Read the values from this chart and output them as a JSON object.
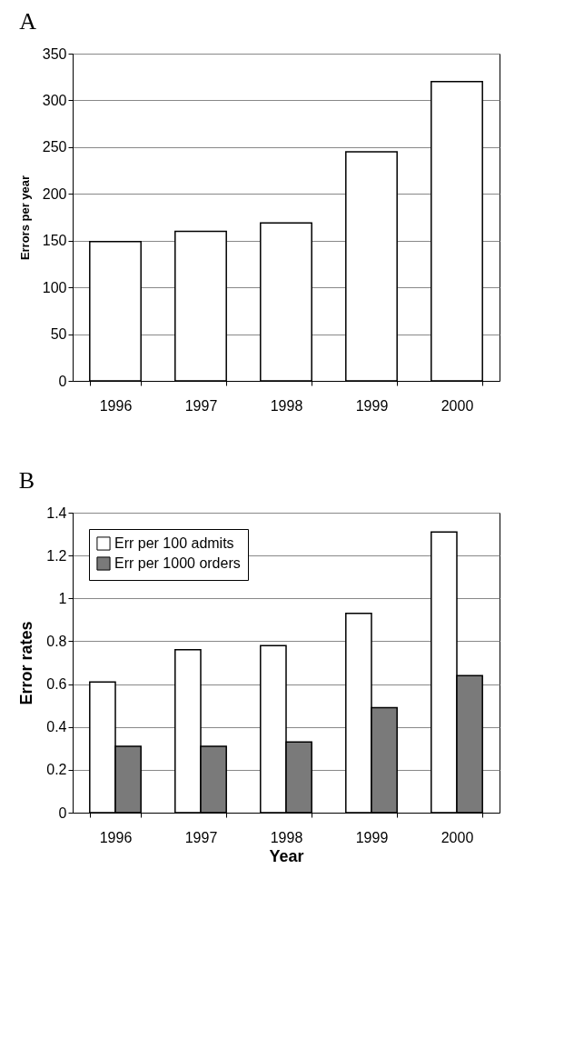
{
  "chart_data": [
    {
      "type": "bar",
      "title": "A",
      "ylabel": "Errors per year",
      "categories": [
        "1996",
        "1997",
        "1998",
        "1999",
        "2000"
      ],
      "values": [
        149,
        160,
        169,
        245,
        320
      ],
      "color": "#ffffff",
      "ylim": [
        0,
        350
      ],
      "yticks": [
        0,
        50,
        100,
        150,
        200,
        250,
        300,
        350
      ],
      "grid": "y"
    },
    {
      "type": "bar",
      "title": "B",
      "xlabel": "Year",
      "ylabel": "Error rates",
      "categories": [
        "1996",
        "1997",
        "1998",
        "1999",
        "2000"
      ],
      "series": [
        {
          "name": "Err per 100 admits",
          "color": "#ffffff",
          "values": [
            0.61,
            0.76,
            0.78,
            0.93,
            1.31
          ]
        },
        {
          "name": "Err per 1000 orders",
          "color": "#7a7a7a",
          "values": [
            0.31,
            0.31,
            0.33,
            0.49,
            0.64
          ]
        }
      ],
      "ylim": [
        0,
        1.4
      ],
      "yticks": [
        0,
        0.2,
        0.4,
        0.6,
        0.8,
        1,
        1.2,
        1.4
      ],
      "grid": "y",
      "legend": "top left"
    }
  ]
}
